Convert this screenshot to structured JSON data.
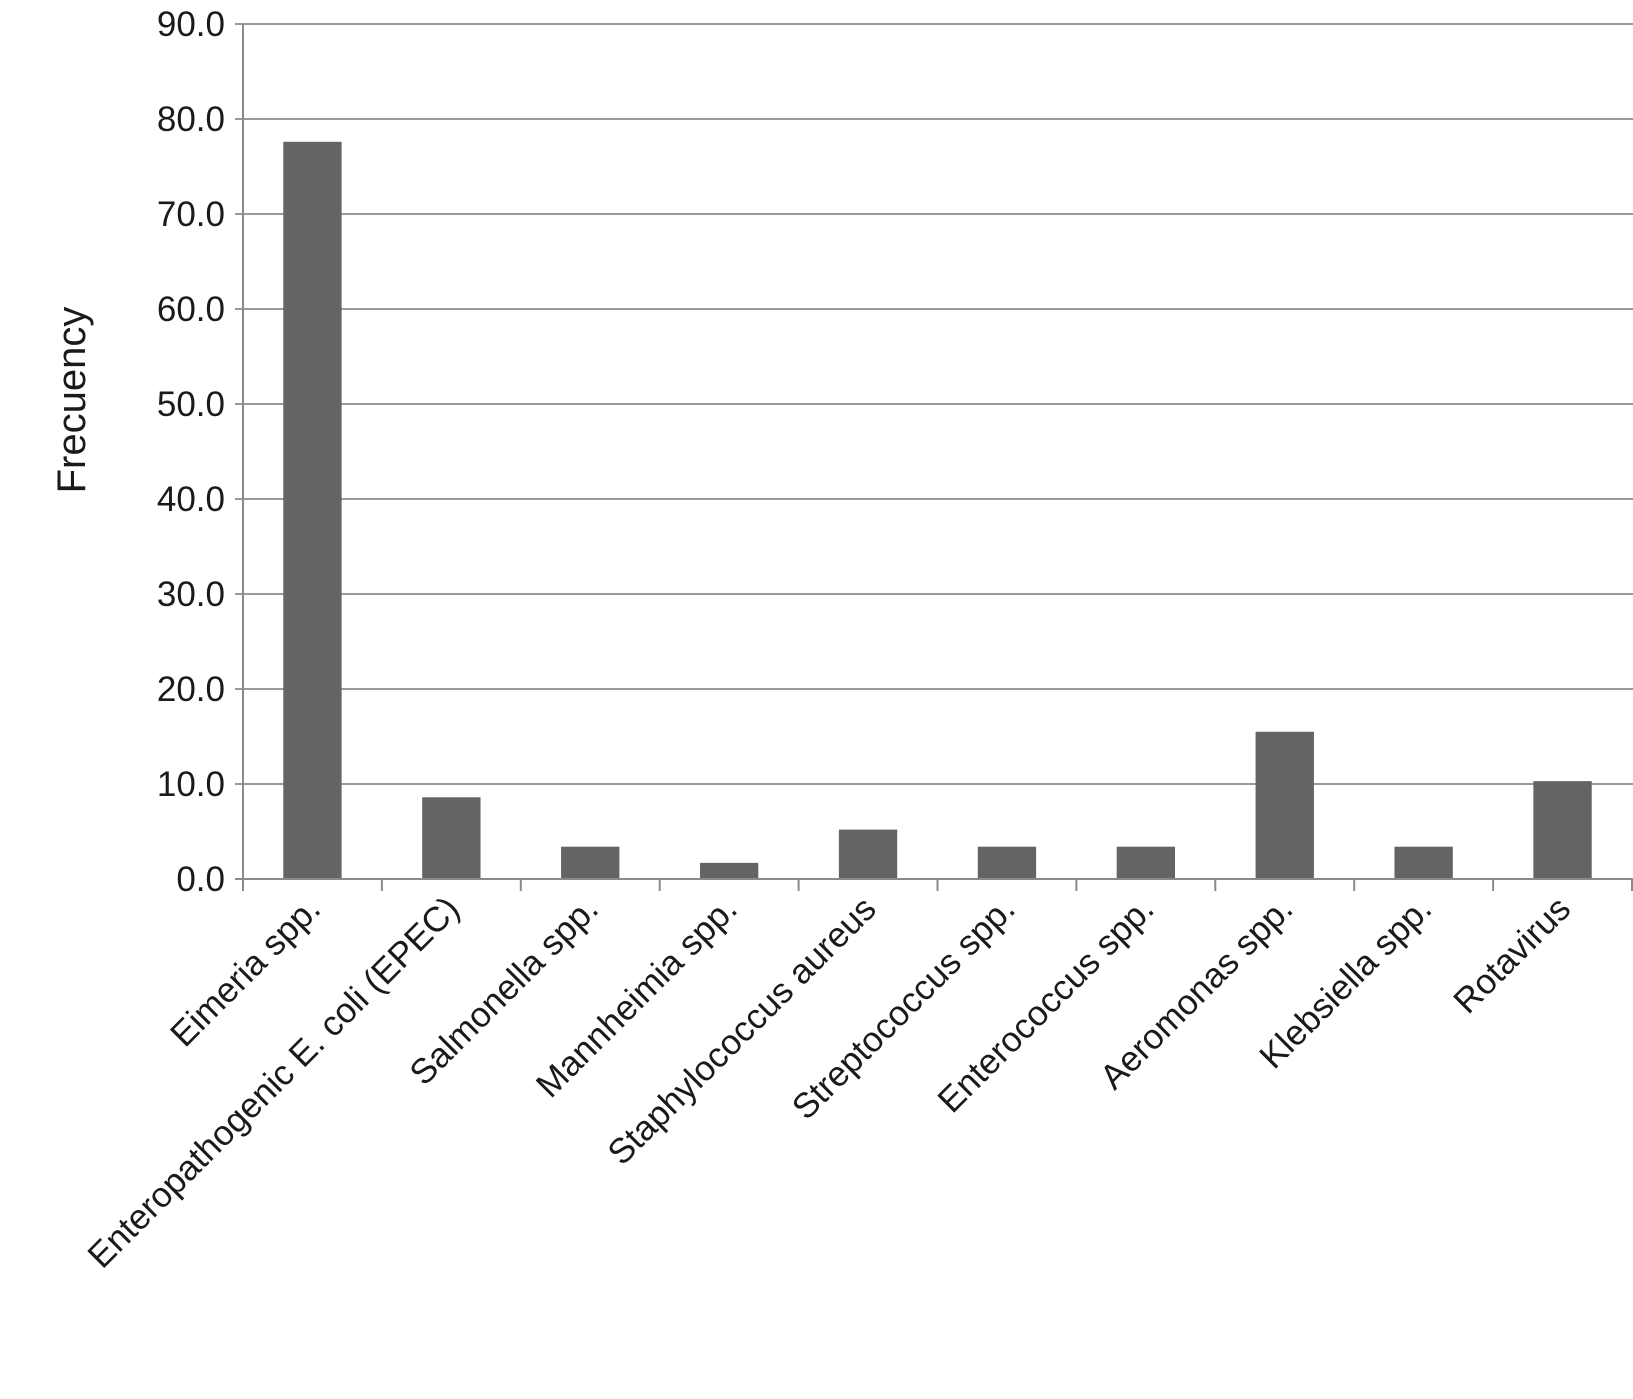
{
  "chart_data": {
    "type": "bar",
    "title": "",
    "xlabel": "",
    "ylabel": "Frecuency",
    "ylim": [
      0,
      90
    ],
    "yticks": [
      "0.0",
      "10.0",
      "20.0",
      "30.0",
      "40.0",
      "50.0",
      "60.0",
      "70.0",
      "80.0",
      "90.0"
    ],
    "grid": true,
    "categories": [
      "Eimeria spp.",
      "Enteropathogenic E. coli (EPEC)",
      "Salmonella spp.",
      "Mannheimia spp.",
      "Staphylococcus aureus",
      "Streptococcus spp.",
      "Enterococcus spp.",
      "Aeromonas spp.",
      "Klebsiella spp.",
      "Rotavirus"
    ],
    "values": [
      77.6,
      8.6,
      3.4,
      1.7,
      5.2,
      3.4,
      3.4,
      15.5,
      3.4,
      10.3
    ],
    "colors": {
      "bar": "#636466",
      "grid": "#9a9a9a",
      "text": "#1a1a1a"
    }
  }
}
